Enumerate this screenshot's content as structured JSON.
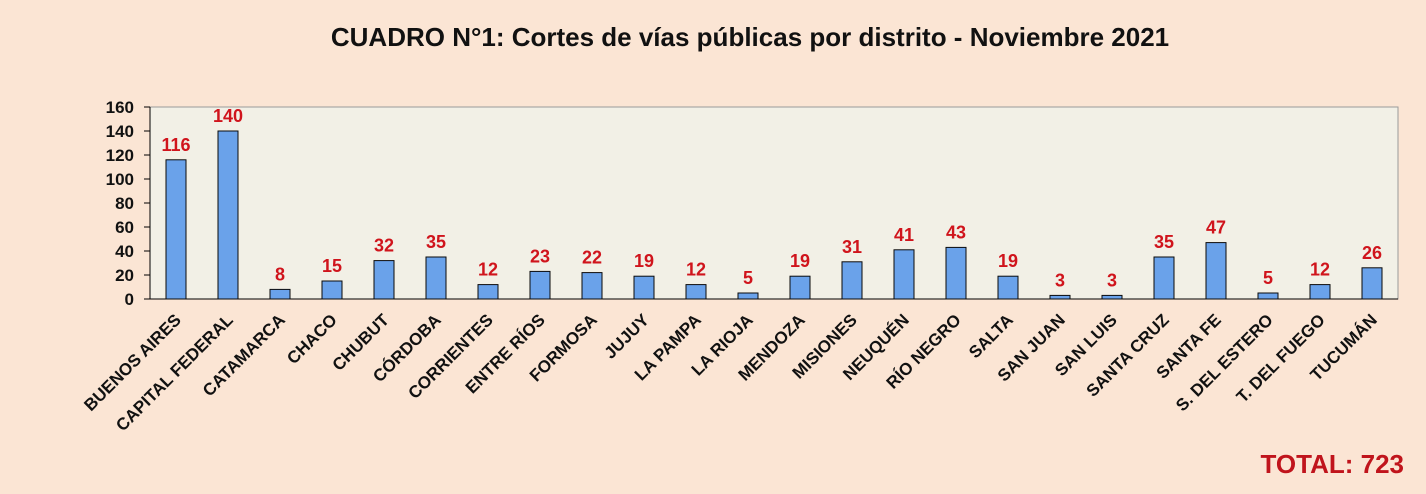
{
  "chart_data": {
    "type": "bar",
    "title": "CUADRO N°1: Cortes de vías públicas por distrito - Noviembre 2021",
    "categories": [
      "BUENOS AIRES",
      "CAPITAL FEDERAL",
      "CATAMARCA",
      "CHACO",
      "CHUBUT",
      "CÓRDOBA",
      "CORRIENTES",
      "ENTRE RÍOS",
      "FORMOSA",
      "JUJUY",
      "LA PAMPA",
      "LA RIOJA",
      "MENDOZA",
      "MISIONES",
      "NEUQUÉN",
      "RÍO NEGRO",
      "SALTA",
      "SAN JUAN",
      "SAN LUIS",
      "SANTA CRUZ",
      "SANTA FE",
      "S. DEL ESTERO",
      "T. DEL FUEGO",
      "TUCUMÁN"
    ],
    "values": [
      116,
      140,
      8,
      15,
      32,
      35,
      12,
      23,
      22,
      19,
      12,
      5,
      19,
      31,
      41,
      43,
      19,
      3,
      3,
      35,
      47,
      5,
      12,
      26
    ],
    "ylim": [
      0,
      160
    ],
    "yticks": [
      0,
      20,
      40,
      60,
      80,
      100,
      120,
      140,
      160
    ],
    "xlabel": "",
    "ylabel": "",
    "grid": false,
    "data_labels": true,
    "total_label": "TOTAL: 723"
  },
  "colors": {
    "background": "#fbe5d4",
    "plot_area": "#f2f0e6",
    "bar_fill": "#6aa2ea",
    "bar_stroke": "#0a0a0a",
    "data_label": "#d0141c",
    "total": "#c0141c"
  }
}
